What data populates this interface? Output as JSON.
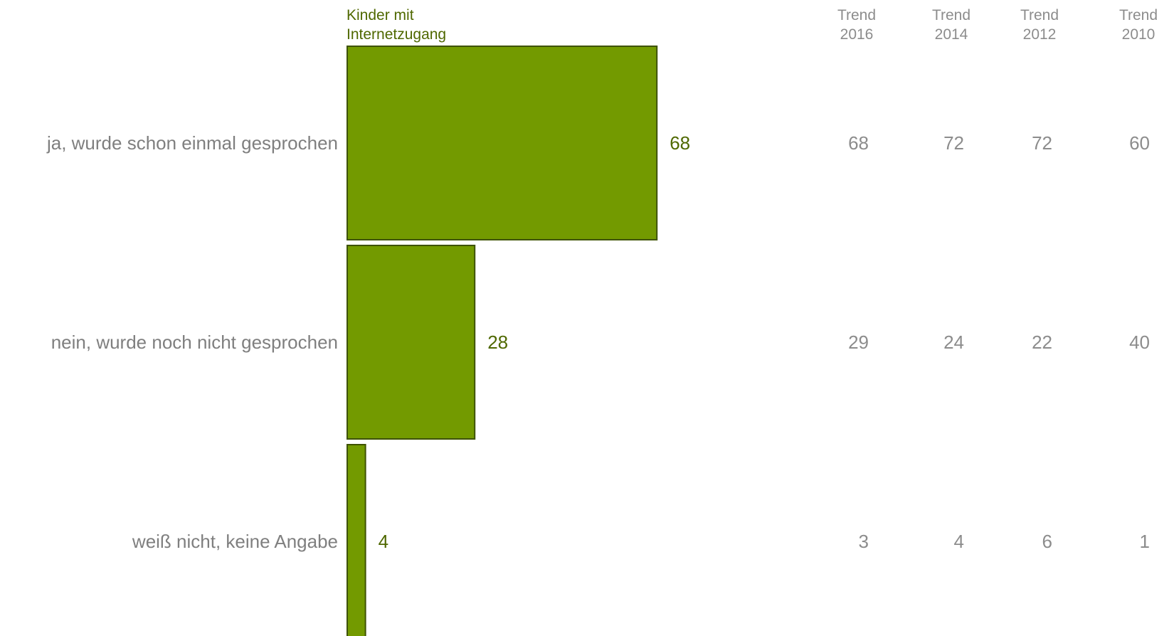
{
  "colors": {
    "bar": "#739a00",
    "bar_border": "#3e5200",
    "series_text": "#4f6800",
    "muted_text": "#8c8c8c"
  },
  "chart_data": {
    "type": "bar",
    "orientation": "horizontal",
    "categories": [
      "ja, wurde schon einmal gesprochen",
      "nein, wurde noch nicht gesprochen",
      "weiß nicht, keine Angabe"
    ],
    "series": [
      {
        "name": "Kinder mit Internetzugang",
        "name_lines": [
          "Kinder mit",
          "Internetzugang"
        ],
        "values": [
          68,
          28,
          4
        ]
      }
    ],
    "xlim": [
      0,
      100
    ],
    "grid": false,
    "trend_columns": [
      {
        "label_lines": [
          "Trend",
          "2016"
        ],
        "values": [
          68,
          29,
          3
        ]
      },
      {
        "label_lines": [
          "Trend",
          "2014"
        ],
        "values": [
          72,
          24,
          4
        ]
      },
      {
        "label_lines": [
          "Trend",
          "2012"
        ],
        "values": [
          72,
          22,
          6
        ]
      },
      {
        "label_lines": [
          "Trend",
          "2010"
        ],
        "values": [
          60,
          40,
          1
        ]
      }
    ]
  }
}
